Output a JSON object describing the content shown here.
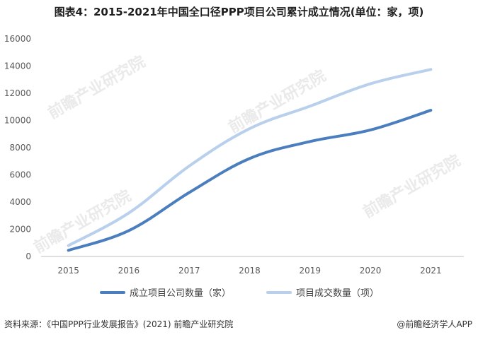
{
  "title": "图表4：2015-2021年中国全口径PPP项目公司累计成立情况(单位：家，项)",
  "source": "资料来源：《中国PPP行业发展报告》(2021) 前瞻产业研究院",
  "brand": "@前瞻经济学人APP",
  "watermark": "前瞻产业研究院",
  "chart_data": {
    "type": "line",
    "categories": [
      "2015",
      "2016",
      "2017",
      "2018",
      "2019",
      "2020",
      "2021"
    ],
    "series": [
      {
        "name": "成立项目公司数量（家）",
        "color": "#4a7ebf",
        "values": [
          450,
          1900,
          4700,
          7200,
          8450,
          9300,
          10750
        ]
      },
      {
        "name": "项目成交数量（项）",
        "color": "#b8d0ec",
        "values": [
          800,
          3200,
          6650,
          9400,
          11050,
          12700,
          13750
        ]
      }
    ],
    "ylim": [
      0,
      16000
    ],
    "yticks": [
      "0",
      "2000",
      "4000",
      "6000",
      "8000",
      "10000",
      "12000",
      "14000",
      "16000"
    ],
    "grid": false,
    "legend": "bottom"
  }
}
